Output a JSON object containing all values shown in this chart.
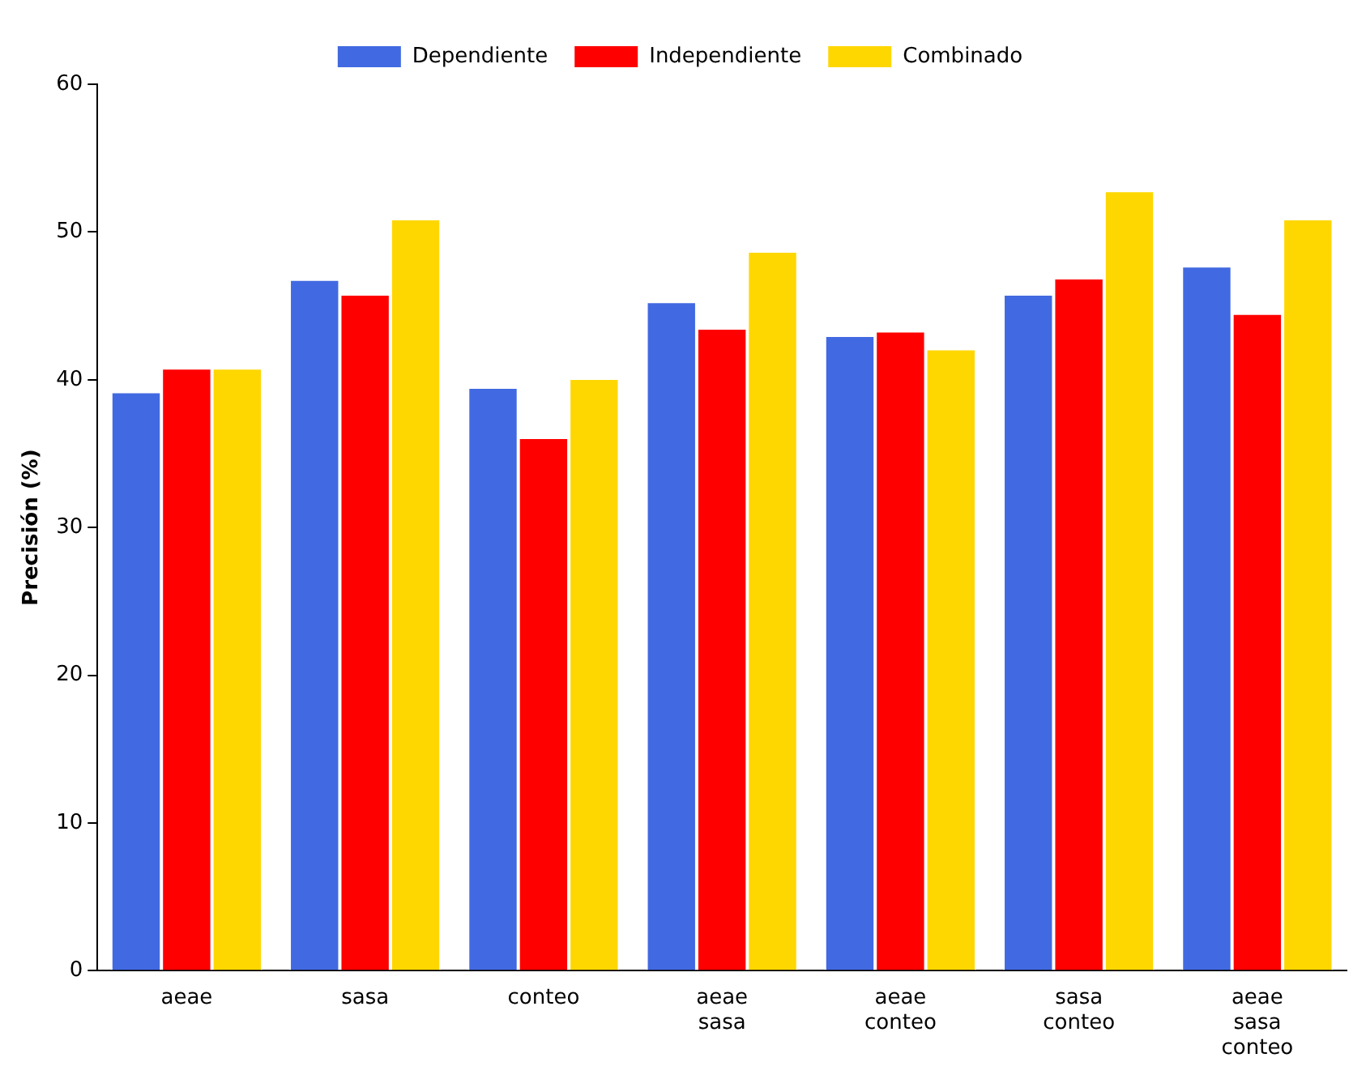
{
  "chart_data": {
    "type": "bar",
    "ylabel": "Precisión (%)",
    "categories": [
      "aeae",
      "sasa",
      "conteo",
      "aeae\nsasa",
      "aeae\nconteo",
      "sasa\nconteo",
      "aeae\nsasa\nconteo"
    ],
    "series": [
      {
        "name": "Dependiente",
        "color": "#4169e1",
        "values": [
          39.2,
          46.8,
          39.5,
          45.3,
          43.0,
          45.8,
          47.7
        ]
      },
      {
        "name": "Independiente",
        "color": "#ff0000",
        "values": [
          40.8,
          45.8,
          36.1,
          43.5,
          43.3,
          46.9,
          44.5
        ]
      },
      {
        "name": "Combinado",
        "color": "#ffd700",
        "values": [
          40.8,
          50.9,
          40.1,
          48.7,
          42.1,
          52.8,
          50.9
        ]
      }
    ],
    "ylim": [
      0,
      60
    ],
    "yticks": [
      0,
      10,
      20,
      30,
      40,
      50,
      60
    ],
    "grid": false,
    "legend": "top"
  }
}
